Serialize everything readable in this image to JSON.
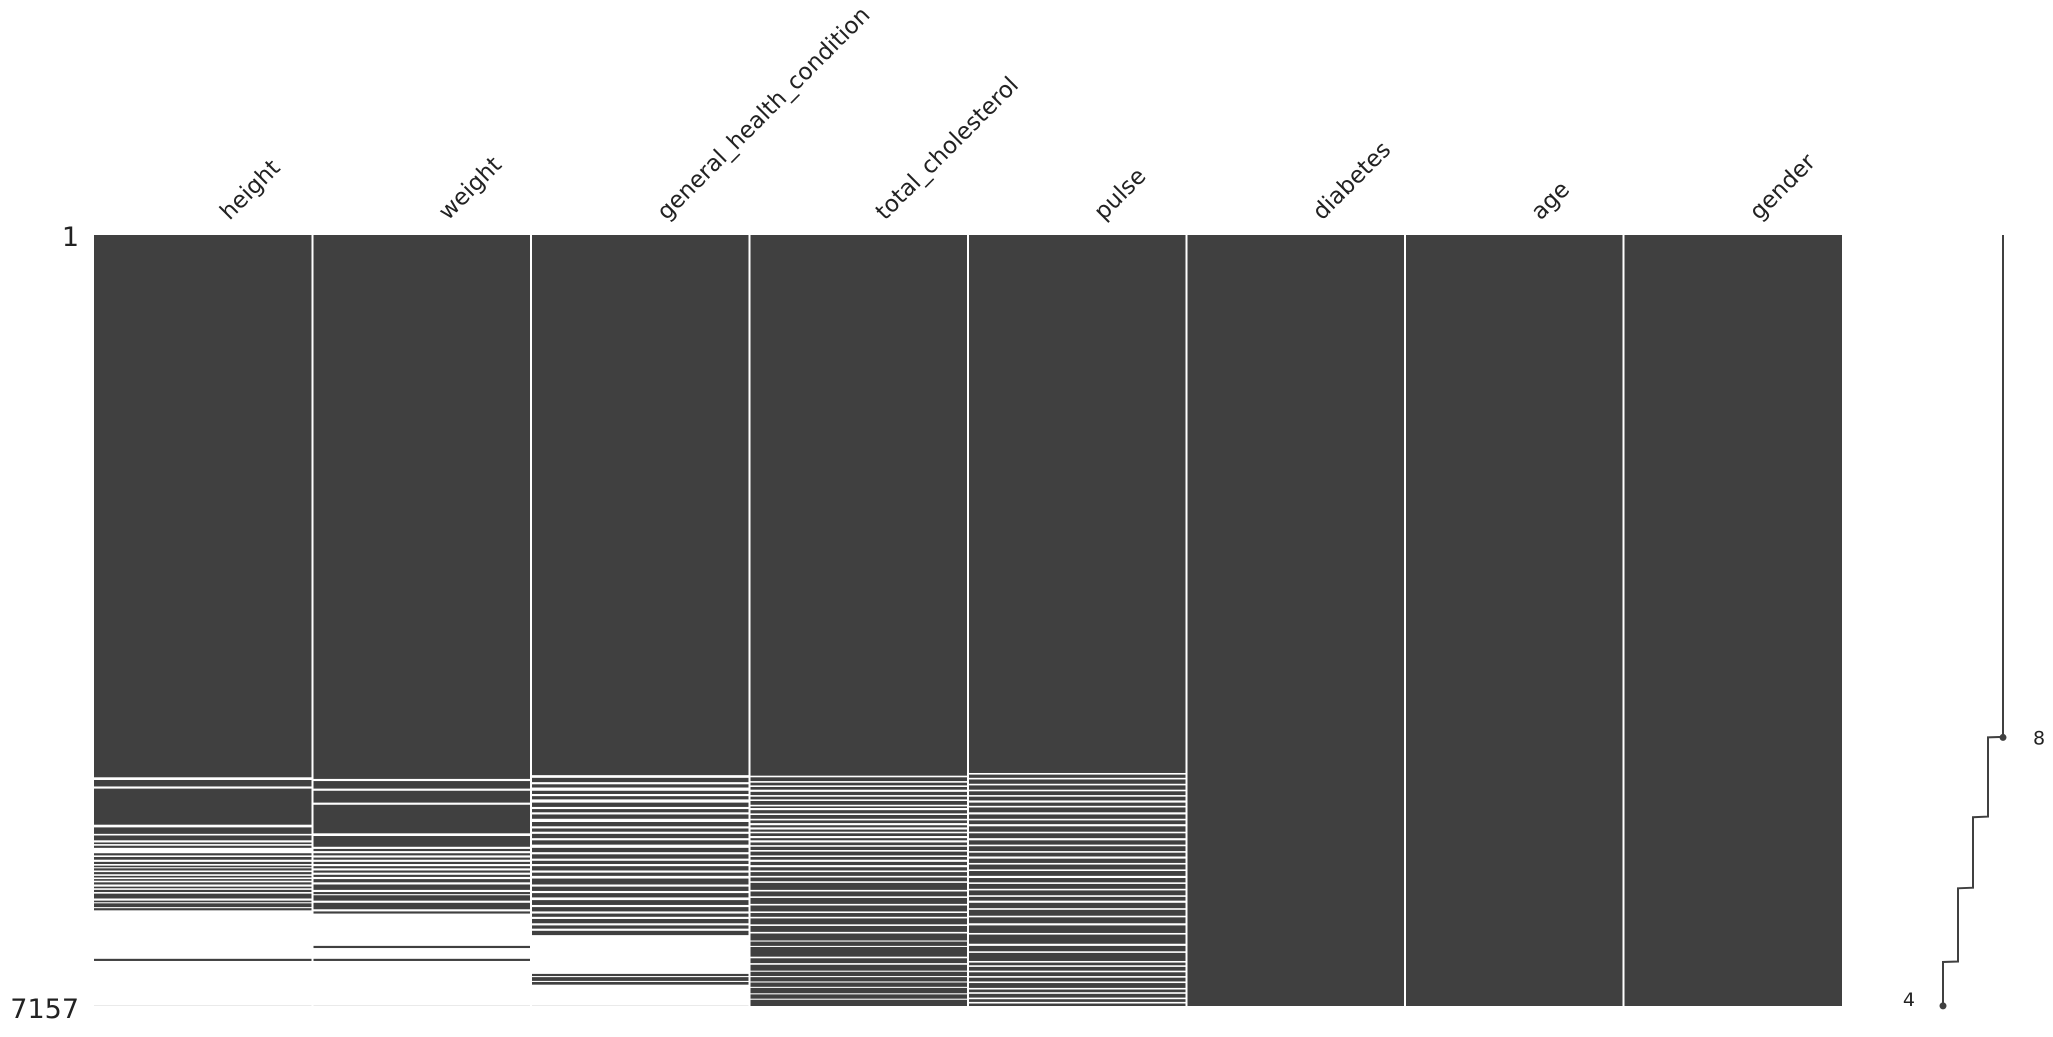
{
  "chart_data": {
    "type": "heatmap",
    "kind": "missing-value matrix",
    "row_range": {
      "first": 1,
      "last": 7157
    },
    "columns": [
      {
        "name": "height",
        "complete_until_row": 5035,
        "gaps": [
          [
            5035,
            5060
          ],
          [
            5120,
            5140
          ],
          [
            5475,
            5500
          ],
          [
            5560,
            5575
          ],
          [
            5620,
            5640
          ],
          [
            5655,
            5670
          ],
          [
            5690,
            5740
          ],
          [
            5760,
            5775
          ],
          [
            5800,
            5820
          ],
          [
            5840,
            5855
          ],
          [
            5870,
            5880
          ],
          [
            5900,
            5915
          ],
          [
            5935,
            5950
          ],
          [
            5965,
            5980
          ],
          [
            5995,
            6010
          ],
          [
            6030,
            6050
          ],
          [
            6065,
            6080
          ],
          [
            6100,
            6115
          ],
          [
            6160,
            6180
          ],
          [
            6195,
            6205
          ],
          [
            6240,
            6250
          ],
          [
            6270,
            6720
          ],
          [
            6740,
            7157
          ]
        ]
      },
      {
        "name": "weight",
        "complete_until_row": 5050,
        "gaps": [
          [
            5050,
            5070
          ],
          [
            5140,
            5160
          ],
          [
            5270,
            5290
          ],
          [
            5555,
            5580
          ],
          [
            5680,
            5700
          ],
          [
            5720,
            5740
          ],
          [
            5760,
            5780
          ],
          [
            5800,
            5820
          ],
          [
            5840,
            5860
          ],
          [
            5880,
            5900
          ],
          [
            5920,
            5940
          ],
          [
            5960,
            5980
          ],
          [
            6010,
            6030
          ],
          [
            6080,
            6100
          ],
          [
            6120,
            6130
          ],
          [
            6180,
            6200
          ],
          [
            6260,
            6280
          ],
          [
            6300,
            6600
          ],
          [
            6620,
            6720
          ],
          [
            6740,
            7157
          ]
        ]
      },
      {
        "name": "general_health_condition",
        "complete_until_row": 5015,
        "gaps": [
          [
            5015,
            5040
          ],
          [
            5080,
            5100
          ],
          [
            5130,
            5160
          ],
          [
            5190,
            5210
          ],
          [
            5240,
            5270
          ],
          [
            5310,
            5330
          ],
          [
            5360,
            5380
          ],
          [
            5420,
            5450
          ],
          [
            5490,
            5510
          ],
          [
            5540,
            5560
          ],
          [
            5600,
            5620
          ],
          [
            5660,
            5690
          ],
          [
            5730,
            5750
          ],
          [
            5790,
            5810
          ],
          [
            5840,
            5860
          ],
          [
            5900,
            5920
          ],
          [
            5950,
            5975
          ],
          [
            6030,
            6050
          ],
          [
            6090,
            6110
          ],
          [
            6150,
            6175
          ],
          [
            6220,
            6240
          ],
          [
            6280,
            6300
          ],
          [
            6330,
            6350
          ],
          [
            6390,
            6410
          ],
          [
            6440,
            6460
          ],
          [
            6500,
            6860
          ],
          [
            6880,
            6890
          ],
          [
            6925,
            6935
          ],
          [
            6960,
            7157
          ]
        ]
      },
      {
        "name": "total_cholesterol",
        "complete_until_row": 5020,
        "gaps": [
          [
            5020,
            5035
          ],
          [
            5070,
            5085
          ],
          [
            5110,
            5125
          ],
          [
            5150,
            5170
          ],
          [
            5200,
            5215
          ],
          [
            5240,
            5255
          ],
          [
            5290,
            5305
          ],
          [
            5320,
            5340
          ],
          [
            5370,
            5385
          ],
          [
            5420,
            5435
          ],
          [
            5460,
            5480
          ],
          [
            5500,
            5520
          ],
          [
            5540,
            5555
          ],
          [
            5580,
            5600
          ],
          [
            5620,
            5640
          ],
          [
            5665,
            5680
          ],
          [
            5710,
            5725
          ],
          [
            5760,
            5775
          ],
          [
            5800,
            5820
          ],
          [
            5850,
            5870
          ],
          [
            5900,
            5915
          ],
          [
            5950,
            5965
          ],
          [
            6000,
            6015
          ],
          [
            6080,
            6095
          ],
          [
            6140,
            6155
          ],
          [
            6210,
            6225
          ],
          [
            6280,
            6295
          ],
          [
            6330,
            6345
          ],
          [
            6400,
            6415
          ],
          [
            6470,
            6485
          ],
          [
            6550,
            6560
          ],
          [
            6600,
            6610
          ],
          [
            6700,
            6715
          ],
          [
            6760,
            6775
          ],
          [
            6830,
            6840
          ],
          [
            6880,
            6890
          ],
          [
            6930,
            6940
          ],
          [
            6980,
            6990
          ],
          [
            7040,
            7050
          ],
          [
            7090,
            7100
          ]
        ]
      },
      {
        "name": "pulse",
        "complete_until_row": 4995,
        "gaps": [
          [
            4995,
            5010
          ],
          [
            5040,
            5055
          ],
          [
            5095,
            5110
          ],
          [
            5150,
            5165
          ],
          [
            5200,
            5215
          ],
          [
            5250,
            5270
          ],
          [
            5300,
            5315
          ],
          [
            5360,
            5380
          ],
          [
            5420,
            5435
          ],
          [
            5470,
            5490
          ],
          [
            5540,
            5555
          ],
          [
            5600,
            5620
          ],
          [
            5660,
            5675
          ],
          [
            5720,
            5735
          ],
          [
            5770,
            5790
          ],
          [
            5830,
            5845
          ],
          [
            5890,
            5905
          ],
          [
            5950,
            5970
          ],
          [
            6010,
            6025
          ],
          [
            6070,
            6085
          ],
          [
            6130,
            6145
          ],
          [
            6180,
            6200
          ],
          [
            6250,
            6265
          ],
          [
            6320,
            6335
          ],
          [
            6390,
            6410
          ],
          [
            6480,
            6495
          ],
          [
            6580,
            6600
          ],
          [
            6650,
            6665
          ],
          [
            6740,
            6755
          ],
          [
            6780,
            6795
          ],
          [
            6830,
            6845
          ],
          [
            6880,
            6895
          ],
          [
            6930,
            6945
          ],
          [
            6990,
            7005
          ],
          [
            7030,
            7045
          ],
          [
            7080,
            7095
          ],
          [
            7120,
            7135
          ]
        ]
      },
      {
        "name": "diabetes",
        "complete_until_row": 7157,
        "gaps": []
      },
      {
        "name": "age",
        "complete_until_row": 7157,
        "gaps": []
      },
      {
        "name": "gender",
        "complete_until_row": 7157,
        "gaps": []
      }
    ],
    "sparkline": {
      "points": [
        {
          "row": 1,
          "complete": 8
        },
        {
          "row": 4660,
          "complete": 8
        },
        {
          "row": 4665,
          "complete": 7
        },
        {
          "row": 5400,
          "complete": 7
        },
        {
          "row": 5405,
          "complete": 6
        },
        {
          "row": 6060,
          "complete": 6
        },
        {
          "row": 6065,
          "complete": 5
        },
        {
          "row": 6745,
          "complete": 5
        },
        {
          "row": 6750,
          "complete": 4
        },
        {
          "row": 7157,
          "complete": 4
        }
      ],
      "max": 8,
      "min": 4,
      "max_label": "8",
      "min_label": "4",
      "max_row": 4665,
      "min_row": 7157
    },
    "labels": {
      "top_row": "1",
      "bottom_row": "7157"
    },
    "colors": {
      "present": "#404040",
      "missing": "#ffffff",
      "separator": "#ffffff",
      "text": "#222222",
      "sparkline": "#404040"
    }
  }
}
